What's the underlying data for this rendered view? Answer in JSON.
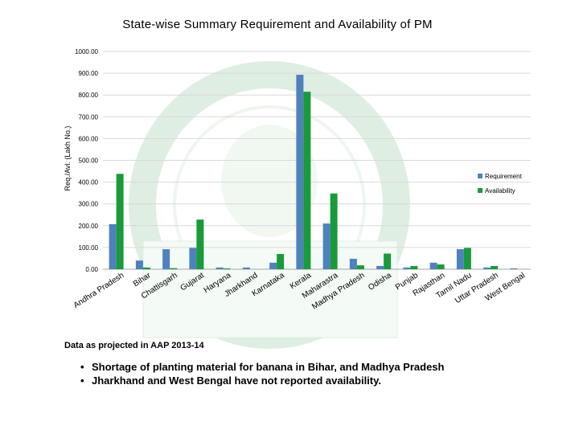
{
  "chart_data": {
    "type": "bar",
    "title": "State-wise Summary Requirement and Availability of PM",
    "ylabel": "Req./Avl. (Lakh No.)",
    "xlabel": "",
    "ylim": [
      0,
      1000
    ],
    "yticks": [
      "0.00",
      "100.00",
      "200.00",
      "300.00",
      "400.00",
      "500.00",
      "600.00",
      "700.00",
      "800.00",
      "900.00",
      "1000.00"
    ],
    "grid": true,
    "legend_position": "right",
    "categories": [
      "Andhra Pradesh",
      "Bihar",
      "Chattisgarh",
      "Gujarat",
      "Haryana",
      "Jharkhand",
      "Karnataka",
      "Kerala",
      "Maharastra",
      "Madhya Pradesh",
      "Odisha",
      "Punjab",
      "Rajasthan",
      "Tamil Nadu",
      "Uttar Pradesh",
      "West Bengal"
    ],
    "series": [
      {
        "name": "Requirement",
        "color": "#4f81bd",
        "values": [
          207,
          40,
          92,
          98,
          8,
          8,
          30,
          893,
          210,
          48,
          15,
          8,
          30,
          92,
          8,
          4
        ]
      },
      {
        "name": "Availability",
        "color": "#1a9a3a",
        "values": [
          438,
          8,
          5,
          228,
          4,
          0,
          70,
          815,
          348,
          18,
          72,
          15,
          22,
          98,
          15,
          0
        ]
      }
    ]
  },
  "footnote": "Data as projected in AAP 2013-14",
  "notes": [
    "Shortage of planting material for banana in Bihar, and Madhya Pradesh",
    "Jharkhand and West Bengal have not reported availability."
  ]
}
